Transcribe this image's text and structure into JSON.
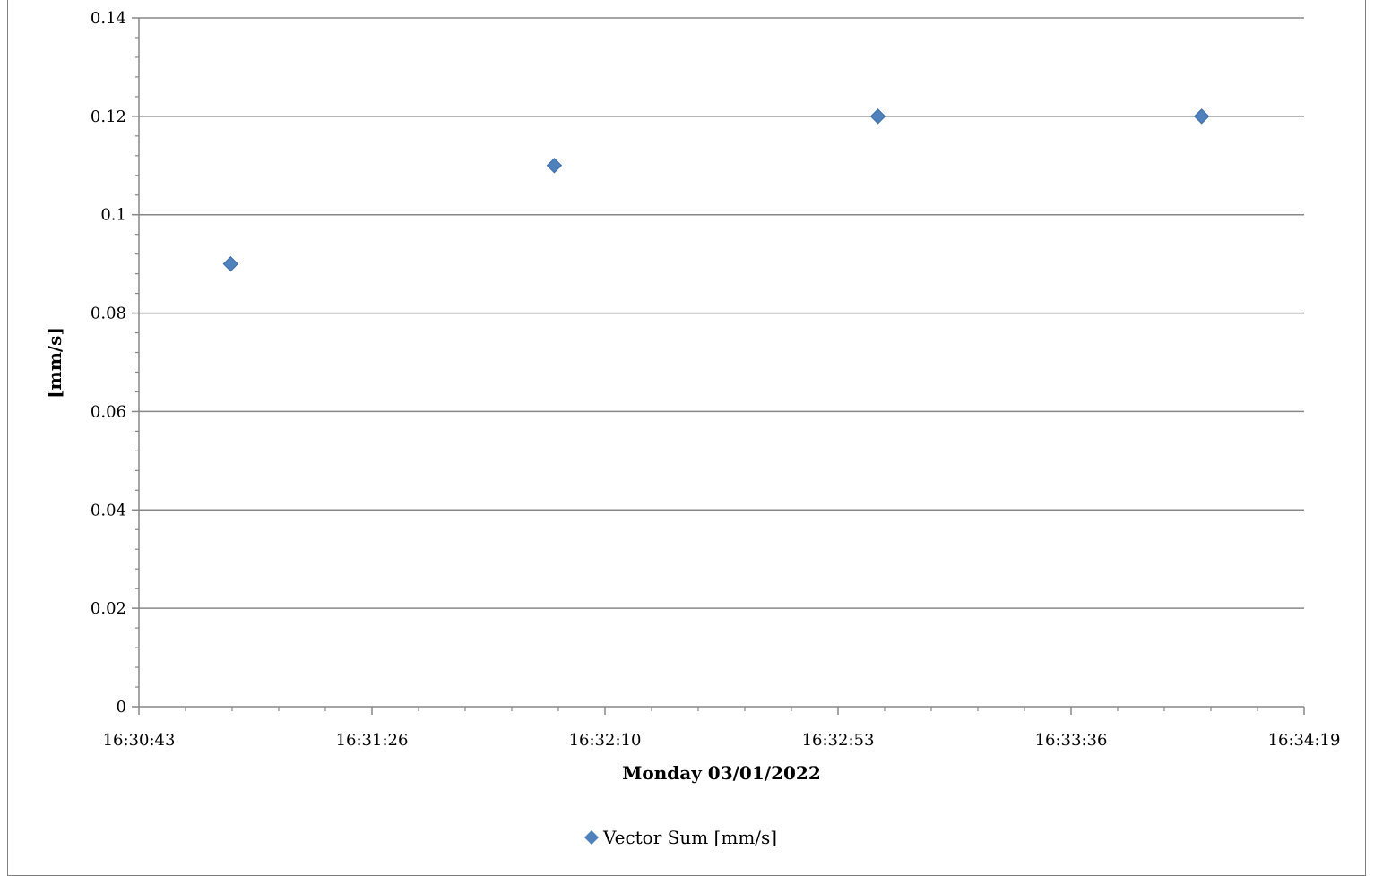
{
  "chart_data": {
    "type": "scatter",
    "title": "",
    "xlabel": "Monday 03/01/2022",
    "ylabel": "[mm/s]",
    "xlim": [
      "16:30:43",
      "16:34:19"
    ],
    "ylim": [
      0,
      0.14
    ],
    "x_ticks": [
      "16:30:43",
      "16:31:26",
      "16:32:10",
      "16:32:53",
      "16:33:36",
      "16:34:19"
    ],
    "y_ticks": [
      "0",
      "0.02",
      "0.04",
      "0.06",
      "0.08",
      "0.1",
      "0.12",
      "0.14"
    ],
    "grid": true,
    "legend_position": "bottom",
    "series": [
      {
        "name": "Vector Sum [mm/s]",
        "color": "#4f81bd",
        "marker": "diamond",
        "x": [
          "16:31:00",
          "16:32:00",
          "16:33:00",
          "16:34:00"
        ],
        "y": [
          0.09,
          0.11,
          0.12,
          0.12
        ]
      }
    ]
  }
}
